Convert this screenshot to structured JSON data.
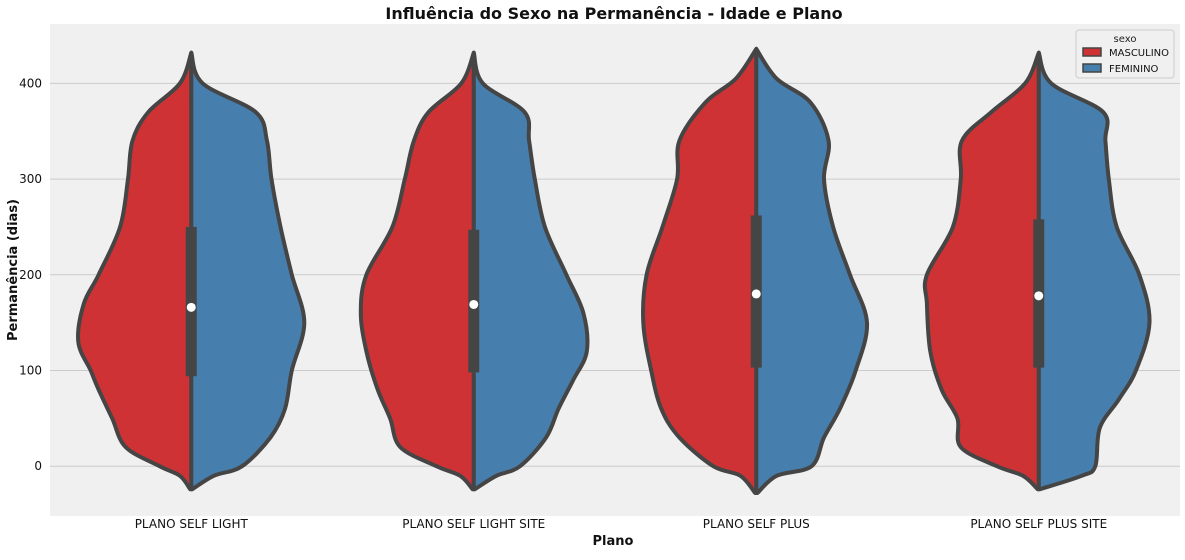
{
  "chart_data": {
    "type": "violin",
    "title": "Influência do Sexo na Permanência - Idade e Plano",
    "xlabel": "Plano",
    "ylabel": "Permanência (dias)",
    "ylim": [
      -52,
      462
    ],
    "yticks": [
      0,
      100,
      200,
      300,
      400
    ],
    "categories": [
      "PLANO SELF LIGHT",
      "PLANO SELF LIGHT SITE",
      "PLANO SELF PLUS",
      "PLANO SELF PLUS SITE"
    ],
    "grid": "horizontal",
    "split": true,
    "legend": {
      "title": "sexo",
      "placement": "top-right",
      "entries": [
        {
          "name": "MASCULINO",
          "color": "#cf3234"
        },
        {
          "name": "FEMININO",
          "color": "#467eae"
        }
      ]
    },
    "series": [
      {
        "name": "MASCULINO",
        "color": "#cf3234",
        "violins": [
          {
            "category": "PLANO SELF LIGHT",
            "profile": [
              [
                -24,
                0.01
              ],
              [
                -10,
                0.1
              ],
              [
                0,
                0.28
              ],
              [
                20,
                0.58
              ],
              [
                50,
                0.7
              ],
              [
                80,
                0.82
              ],
              [
                100,
                0.89
              ],
              [
                130,
                1.0
              ],
              [
                170,
                0.95
              ],
              [
                200,
                0.82
              ],
              [
                250,
                0.63
              ],
              [
                300,
                0.56
              ],
              [
                340,
                0.52
              ],
              [
                370,
                0.38
              ],
              [
                400,
                0.1
              ],
              [
                432,
                0.0
              ]
            ]
          },
          {
            "category": "PLANO SELF LIGHT SITE",
            "profile": [
              [
                -24,
                0.01
              ],
              [
                -10,
                0.12
              ],
              [
                0,
                0.33
              ],
              [
                20,
                0.65
              ],
              [
                50,
                0.74
              ],
              [
                80,
                0.85
              ],
              [
                120,
                0.95
              ],
              [
                160,
                1.0
              ],
              [
                200,
                0.95
              ],
              [
                250,
                0.72
              ],
              [
                300,
                0.61
              ],
              [
                340,
                0.53
              ],
              [
                370,
                0.4
              ],
              [
                400,
                0.11
              ],
              [
                432,
                0.0
              ]
            ]
          },
          {
            "category": "PLANO SELF PLUS",
            "profile": [
              [
                -28,
                0.01
              ],
              [
                -10,
                0.14
              ],
              [
                0,
                0.38
              ],
              [
                30,
                0.68
              ],
              [
                60,
                0.84
              ],
              [
                100,
                0.93
              ],
              [
                150,
                1.0
              ],
              [
                200,
                0.97
              ],
              [
                250,
                0.83
              ],
              [
                300,
                0.7
              ],
              [
                340,
                0.68
              ],
              [
                380,
                0.45
              ],
              [
                405,
                0.18
              ],
              [
                436,
                0.0
              ]
            ]
          },
          {
            "category": "PLANO SELF PLUS SITE",
            "profile": [
              [
                -24,
                0.01
              ],
              [
                -10,
                0.14
              ],
              [
                0,
                0.37
              ],
              [
                20,
                0.69
              ],
              [
                50,
                0.72
              ],
              [
                80,
                0.86
              ],
              [
                120,
                0.96
              ],
              [
                170,
                0.99
              ],
              [
                200,
                0.99
              ],
              [
                250,
                0.76
              ],
              [
                300,
                0.69
              ],
              [
                340,
                0.68
              ],
              [
                370,
                0.42
              ],
              [
                400,
                0.12
              ],
              [
                432,
                0.0
              ]
            ]
          }
        ]
      },
      {
        "name": "FEMININO",
        "color": "#467eae",
        "violins": [
          {
            "category": "PLANO SELF LIGHT",
            "profile": [
              [
                -24,
                0.01
              ],
              [
                -10,
                0.2
              ],
              [
                0,
                0.45
              ],
              [
                30,
                0.7
              ],
              [
                60,
                0.83
              ],
              [
                100,
                0.89
              ],
              [
                150,
                1.0
              ],
              [
                200,
                0.89
              ],
              [
                250,
                0.79
              ],
              [
                300,
                0.71
              ],
              [
                340,
                0.67
              ],
              [
                370,
                0.57
              ],
              [
                400,
                0.1
              ],
              [
                432,
                0.0
              ]
            ]
          },
          {
            "category": "PLANO SELF LIGHT SITE",
            "profile": [
              [
                -24,
                0.01
              ],
              [
                -10,
                0.2
              ],
              [
                0,
                0.41
              ],
              [
                30,
                0.64
              ],
              [
                60,
                0.75
              ],
              [
                90,
                0.88
              ],
              [
                120,
                1.0
              ],
              [
                160,
                0.97
              ],
              [
                200,
                0.82
              ],
              [
                250,
                0.63
              ],
              [
                300,
                0.54
              ],
              [
                340,
                0.49
              ],
              [
                370,
                0.45
              ],
              [
                400,
                0.08
              ],
              [
                432,
                0.0
              ]
            ]
          },
          {
            "category": "PLANO SELF PLUS",
            "profile": [
              [
                -28,
                0.01
              ],
              [
                -10,
                0.18
              ],
              [
                0,
                0.49
              ],
              [
                30,
                0.6
              ],
              [
                60,
                0.74
              ],
              [
                100,
                0.88
              ],
              [
                150,
                0.98
              ],
              [
                200,
                0.83
              ],
              [
                250,
                0.68
              ],
              [
                300,
                0.6
              ],
              [
                340,
                0.64
              ],
              [
                380,
                0.48
              ],
              [
                405,
                0.18
              ],
              [
                436,
                0.0
              ]
            ]
          },
          {
            "category": "PLANO SELF PLUS SITE",
            "profile": [
              [
                -24,
                0.01
              ],
              [
                -10,
                0.38
              ],
              [
                0,
                0.5
              ],
              [
                40,
                0.54
              ],
              [
                70,
                0.71
              ],
              [
                100,
                0.86
              ],
              [
                150,
                0.98
              ],
              [
                200,
                0.89
              ],
              [
                250,
                0.69
              ],
              [
                300,
                0.62
              ],
              [
                340,
                0.59
              ],
              [
                370,
                0.57
              ],
              [
                400,
                0.11
              ],
              [
                432,
                0.0
              ]
            ]
          }
        ]
      }
    ],
    "box": [
      {
        "category": "PLANO SELF LIGHT",
        "q1": 94,
        "median": 166,
        "q3": 250
      },
      {
        "category": "PLANO SELF LIGHT SITE",
        "q1": 98,
        "median": 169,
        "q3": 247
      },
      {
        "category": "PLANO SELF PLUS",
        "q1": 103,
        "median": 180,
        "q3": 262
      },
      {
        "category": "PLANO SELF PLUS SITE",
        "q1": 103,
        "median": 178,
        "q3": 258
      }
    ]
  }
}
